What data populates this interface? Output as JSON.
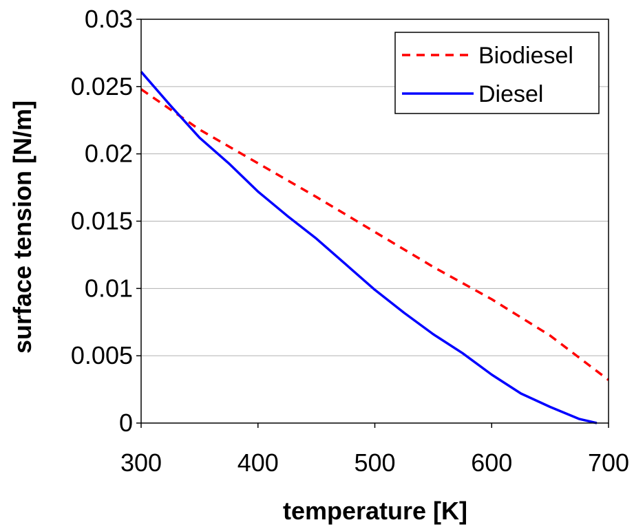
{
  "chart_data": {
    "type": "line",
    "title": "",
    "xlabel": "temperature [K]",
    "ylabel": "surface tension [N/m]",
    "xlim": [
      300,
      700
    ],
    "ylim": [
      0,
      0.03
    ],
    "x_ticks": [
      "300",
      "400",
      "500",
      "600",
      "700"
    ],
    "y_ticks": [
      "0",
      "0.005",
      "0.01",
      "0.015",
      "0.02",
      "0.025",
      "0.03"
    ],
    "grid": "horizontal",
    "legend_position": "top-right",
    "series": [
      {
        "name": "Biodiesel",
        "color": "#ff0000",
        "style": "dashed",
        "x": [
          300,
          350,
          400,
          450,
          500,
          550,
          600,
          650,
          700
        ],
        "y": [
          0.0248,
          0.0218,
          0.0193,
          0.0168,
          0.0142,
          0.0116,
          0.0092,
          0.0065,
          0.0032
        ]
      },
      {
        "name": "Diesel",
        "color": "#0000ff",
        "style": "solid",
        "x": [
          300,
          325,
          350,
          375,
          400,
          425,
          450,
          475,
          500,
          525,
          550,
          575,
          600,
          625,
          650,
          675,
          690
        ],
        "y": [
          0.0261,
          0.0236,
          0.0212,
          0.0193,
          0.0172,
          0.0154,
          0.0137,
          0.0118,
          0.0099,
          0.0082,
          0.0066,
          0.0052,
          0.0036,
          0.0022,
          0.0012,
          0.0003,
          0.0
        ]
      }
    ]
  }
}
